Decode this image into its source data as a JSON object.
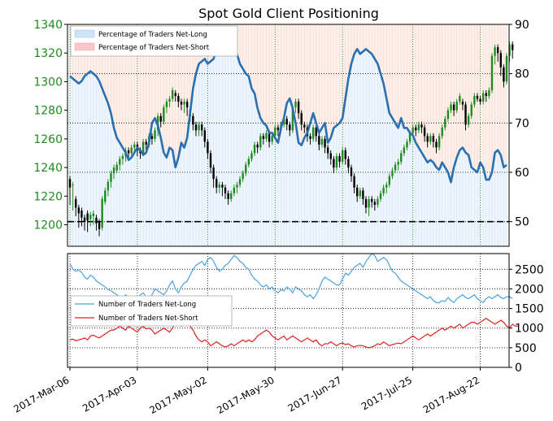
{
  "chart_data": [
    {
      "type": "candlestick+line",
      "title": "Spot Gold Client Positioning",
      "x_ticks": [
        "2017-Mar-06",
        "2017-Apr-03",
        "2017-May-02",
        "2017-May-30",
        "2017-Jun-27",
        "2017-Jul-25",
        "2017-Aug-22"
      ],
      "price_axis": {
        "ticks": [
          1200,
          1220,
          1240,
          1260,
          1280,
          1300,
          1320,
          1340
        ],
        "ylim": [
          1185,
          1340
        ],
        "color": "#1f8a1f"
      },
      "pct_axis": {
        "ticks": [
          50,
          60,
          70,
          80,
          90
        ],
        "ylim": [
          45,
          90
        ]
      },
      "legend": {
        "long_label": "Percentage of Traders Net-Long",
        "short_label": "Percentage of Traders Net-Short",
        "placement": "top-left"
      },
      "pct_net_long": [
        79.5,
        79,
        78.5,
        78,
        78.5,
        79.5,
        80,
        80.5,
        80,
        79.5,
        78.5,
        77,
        75.5,
        74,
        72,
        69,
        67,
        66,
        65,
        64,
        62.5,
        63,
        64,
        65,
        64.5,
        63.5,
        64,
        66,
        70,
        71,
        69.5,
        67,
        64,
        63,
        65,
        64.5,
        61,
        63,
        66,
        65,
        67,
        72,
        77,
        80,
        82,
        82.5,
        83,
        82,
        82.5,
        83,
        85,
        85.5,
        84,
        84,
        85.5,
        86,
        85.5,
        84,
        82,
        81,
        80,
        79.5,
        77,
        76,
        73,
        71,
        70,
        69.5,
        68,
        68,
        67,
        66,
        69,
        71,
        74,
        75,
        73,
        70,
        66,
        65.5,
        67,
        68,
        70,
        72,
        70,
        68,
        69,
        70,
        66,
        67,
        69,
        69.5,
        70,
        71,
        75,
        79,
        82,
        84,
        85,
        84,
        84.5,
        85,
        84.5,
        84,
        83,
        82,
        80,
        78,
        75,
        72,
        71,
        70,
        69,
        71,
        69,
        69,
        68,
        67.5,
        66,
        65,
        64,
        63,
        62,
        62.5,
        62,
        61,
        60.5,
        62,
        61,
        60,
        58,
        61,
        63,
        64.5,
        65,
        64,
        63.5,
        61,
        60.5,
        60,
        62,
        61,
        58.5,
        58.5,
        60,
        64,
        64.5,
        63.5,
        61,
        61.5
      ],
      "ohlc": [
        [
          1232,
          1226,
          1214
        ],
        [
          1228,
          1228,
          1210
        ],
        [
          1218,
          1212,
          1206
        ],
        [
          1212,
          1208,
          1198
        ],
        [
          1210,
          1205,
          1199
        ],
        [
          1205,
          1202,
          1196
        ],
        [
          1208,
          1203,
          1195
        ],
        [
          1204,
          1207,
          1199
        ],
        [
          1206,
          1208,
          1200
        ],
        [
          1205,
          1201,
          1196
        ],
        [
          1202,
          1197,
          1192
        ],
        [
          1198,
          1218,
          1196
        ],
        [
          1216,
          1224,
          1214
        ],
        [
          1224,
          1230,
          1220
        ],
        [
          1230,
          1236,
          1226
        ],
        [
          1236,
          1240,
          1232
        ],
        [
          1238,
          1242,
          1236
        ],
        [
          1242,
          1246,
          1238
        ],
        [
          1246,
          1248,
          1242
        ],
        [
          1248,
          1252,
          1244
        ],
        [
          1252,
          1250,
          1246
        ],
        [
          1250,
          1254,
          1248
        ],
        [
          1254,
          1256,
          1250
        ],
        [
          1256,
          1252,
          1248
        ],
        [
          1252,
          1250,
          1246
        ],
        [
          1250,
          1258,
          1248
        ],
        [
          1258,
          1256,
          1252
        ],
        [
          1256,
          1262,
          1254
        ],
        [
          1262,
          1260,
          1256
        ],
        [
          1260,
          1266,
          1258
        ],
        [
          1266,
          1276,
          1262
        ],
        [
          1276,
          1272,
          1268
        ],
        [
          1272,
          1282,
          1270
        ],
        [
          1282,
          1286,
          1278
        ],
        [
          1286,
          1288,
          1282
        ],
        [
          1288,
          1294,
          1286
        ],
        [
          1292,
          1290,
          1286
        ],
        [
          1290,
          1286,
          1282
        ],
        [
          1286,
          1284,
          1280
        ],
        [
          1284,
          1286,
          1278
        ],
        [
          1286,
          1282,
          1276
        ],
        [
          1280,
          1276,
          1272
        ],
        [
          1276,
          1270,
          1266
        ],
        [
          1270,
          1266,
          1262
        ],
        [
          1266,
          1270,
          1262
        ],
        [
          1270,
          1266,
          1262
        ],
        [
          1266,
          1258,
          1254
        ],
        [
          1258,
          1250,
          1246
        ],
        [
          1250,
          1240,
          1236
        ],
        [
          1240,
          1232,
          1226
        ],
        [
          1232,
          1226,
          1222
        ],
        [
          1226,
          1228,
          1222
        ],
        [
          1228,
          1226,
          1220
        ],
        [
          1226,
          1222,
          1218
        ],
        [
          1222,
          1218,
          1214
        ],
        [
          1218,
          1222,
          1216
        ],
        [
          1222,
          1226,
          1220
        ],
        [
          1226,
          1228,
          1222
        ],
        [
          1228,
          1232,
          1226
        ],
        [
          1232,
          1236,
          1230
        ],
        [
          1236,
          1242,
          1234
        ],
        [
          1242,
          1246,
          1240
        ],
        [
          1246,
          1250,
          1244
        ],
        [
          1250,
          1256,
          1248
        ],
        [
          1256,
          1254,
          1250
        ],
        [
          1254,
          1262,
          1252
        ],
        [
          1262,
          1260,
          1256
        ],
        [
          1260,
          1264,
          1258
        ],
        [
          1264,
          1258,
          1254
        ],
        [
          1258,
          1262,
          1256
        ],
        [
          1262,
          1268,
          1260
        ],
        [
          1268,
          1266,
          1262
        ],
        [
          1266,
          1270,
          1264
        ],
        [
          1270,
          1274,
          1268
        ],
        [
          1274,
          1270,
          1266
        ],
        [
          1270,
          1266,
          1262
        ],
        [
          1266,
          1282,
          1264
        ],
        [
          1282,
          1286,
          1278
        ],
        [
          1286,
          1278,
          1274
        ],
        [
          1278,
          1270,
          1266
        ],
        [
          1270,
          1268,
          1264
        ],
        [
          1268,
          1262,
          1258
        ],
        [
          1262,
          1260,
          1256
        ],
        [
          1260,
          1268,
          1258
        ],
        [
          1268,
          1262,
          1258
        ],
        [
          1262,
          1256,
          1252
        ],
        [
          1256,
          1260,
          1254
        ],
        [
          1260,
          1254,
          1250
        ],
        [
          1254,
          1250,
          1246
        ],
        [
          1250,
          1246,
          1242
        ],
        [
          1246,
          1240,
          1236
        ],
        [
          1240,
          1248,
          1238
        ],
        [
          1248,
          1244,
          1240
        ],
        [
          1244,
          1252,
          1242
        ],
        [
          1252,
          1246,
          1242
        ],
        [
          1246,
          1240,
          1236
        ],
        [
          1240,
          1234,
          1230
        ],
        [
          1234,
          1226,
          1222
        ],
        [
          1226,
          1220,
          1216
        ],
        [
          1220,
          1224,
          1218
        ],
        [
          1224,
          1218,
          1214
        ],
        [
          1218,
          1212,
          1208
        ],
        [
          1212,
          1218,
          1206
        ],
        [
          1218,
          1216,
          1212
        ],
        [
          1216,
          1214,
          1210
        ],
        [
          1214,
          1218,
          1212
        ],
        [
          1218,
          1222,
          1216
        ],
        [
          1222,
          1226,
          1220
        ],
        [
          1226,
          1228,
          1222
        ],
        [
          1228,
          1234,
          1226
        ],
        [
          1234,
          1238,
          1232
        ],
        [
          1238,
          1242,
          1236
        ],
        [
          1242,
          1244,
          1238
        ],
        [
          1244,
          1250,
          1242
        ],
        [
          1250,
          1254,
          1248
        ],
        [
          1254,
          1258,
          1252
        ],
        [
          1258,
          1264,
          1256
        ],
        [
          1264,
          1268,
          1262
        ],
        [
          1268,
          1266,
          1262
        ],
        [
          1266,
          1270,
          1264
        ],
        [
          1270,
          1268,
          1264
        ],
        [
          1268,
          1262,
          1258
        ],
        [
          1262,
          1258,
          1254
        ],
        [
          1258,
          1262,
          1256
        ],
        [
          1262,
          1258,
          1254
        ],
        [
          1258,
          1254,
          1250
        ],
        [
          1254,
          1262,
          1252
        ],
        [
          1262,
          1268,
          1260
        ],
        [
          1268,
          1274,
          1266
        ],
        [
          1274,
          1280,
          1272
        ],
        [
          1280,
          1284,
          1278
        ],
        [
          1284,
          1280,
          1276
        ],
        [
          1280,
          1286,
          1278
        ],
        [
          1286,
          1290,
          1284
        ],
        [
          1286,
          1284,
          1280
        ],
        [
          1284,
          1270,
          1266
        ],
        [
          1270,
          1276,
          1268
        ],
        [
          1276,
          1284,
          1274
        ],
        [
          1284,
          1290,
          1282
        ],
        [
          1290,
          1288,
          1286
        ],
        [
          1288,
          1286,
          1284
        ],
        [
          1286,
          1292,
          1284
        ],
        [
          1292,
          1290,
          1286
        ],
        [
          1290,
          1294,
          1288
        ],
        [
          1294,
          1318,
          1292
        ],
        [
          1318,
          1324,
          1312
        ],
        [
          1324,
          1320,
          1314
        ],
        [
          1320,
          1310,
          1304
        ],
        [
          1310,
          1300,
          1296
        ],
        [
          1300,
          1318,
          1298
        ],
        [
          1318,
          1326,
          1314
        ],
        [
          1326,
          1322,
          1316
        ]
      ],
      "long_color": "#2a6fb0",
      "up_color": "#1f8a1f",
      "down_color": "#000000"
    },
    {
      "type": "line",
      "y_ticks": [
        0,
        500,
        1000,
        1500,
        2000,
        2500
      ],
      "ylim": [
        0,
        2900
      ],
      "legend": {
        "long_label": "Number of Traders Net-Long",
        "short_label": "Number of Traders Net-Short",
        "placement": "left"
      },
      "series": [
        {
          "name": "Number of Traders Net-Long",
          "color": "#4aa3df",
          "values": [
            2650,
            2500,
            2450,
            2480,
            2420,
            2300,
            2250,
            2350,
            2300,
            2200,
            2150,
            2100,
            2050,
            1980,
            1950,
            1900,
            1850,
            1800,
            1780,
            1850,
            1800,
            1750,
            1820,
            1780,
            1850,
            1900,
            1800,
            1750,
            1850,
            2000,
            1950,
            1900,
            1850,
            1950,
            2100,
            2200,
            2000,
            1900,
            2050,
            2150,
            2200,
            2350,
            2500,
            2600,
            2650,
            2700,
            2600,
            2750,
            2800,
            2700,
            2550,
            2450,
            2500,
            2600,
            2650,
            2750,
            2850,
            2800,
            2700,
            2650,
            2550,
            2500,
            2350,
            2250,
            2200,
            2100,
            2050,
            2100,
            2000,
            2050,
            1950,
            1900,
            1980,
            1950,
            2050,
            2000,
            1900,
            2050,
            2000,
            1950,
            1850,
            1800,
            1850,
            1750,
            1850,
            2000,
            2200,
            2300,
            2250,
            2200,
            2150,
            2100,
            2100,
            2250,
            2400,
            2350,
            2450,
            2550,
            2600,
            2650,
            2550,
            2700,
            2800,
            2900,
            2850,
            2700,
            2750,
            2800,
            2750,
            2600,
            2450,
            2400,
            2300,
            2200,
            2150,
            2100,
            2050,
            2000,
            1950,
            1900,
            1850,
            1800,
            1750,
            1800,
            1700,
            1650,
            1650,
            1700,
            1680,
            1780,
            1700,
            1650,
            1750,
            1800,
            1850,
            1780,
            1750,
            1800,
            1850,
            1750,
            1700,
            1650,
            1750,
            1800,
            1750,
            1800,
            1850,
            1780,
            1750,
            1800,
            1800,
            1750
          ]
        },
        {
          "name": "Number of Traders Net-Short",
          "color": "#e02020",
          "values": [
            700,
            720,
            680,
            700,
            720,
            750,
            700,
            800,
            820,
            780,
            750,
            800,
            850,
            900,
            950,
            950,
            1000,
            1050,
            1000,
            950,
            1050,
            1000,
            950,
            900,
            1000,
            1050,
            980,
            1000,
            950,
            850,
            900,
            950,
            1000,
            950,
            900,
            1000,
            1150,
            1200,
            1050,
            1150,
            1100,
            1050,
            950,
            800,
            700,
            650,
            700,
            650,
            550,
            600,
            650,
            600,
            550,
            520,
            550,
            600,
            550,
            600,
            650,
            700,
            650,
            700,
            650,
            700,
            800,
            850,
            900,
            950,
            900,
            800,
            750,
            700,
            750,
            800,
            700,
            750,
            800,
            750,
            700,
            650,
            700,
            750,
            700,
            650,
            700,
            600,
            550,
            600,
            600,
            650,
            600,
            550,
            600,
            620,
            580,
            600,
            550,
            520,
            550,
            560,
            550,
            520,
            500,
            520,
            550,
            600,
            580,
            650,
            600,
            550,
            580,
            600,
            620,
            600,
            650,
            700,
            750,
            800,
            750,
            700,
            750,
            800,
            850,
            800,
            850,
            900,
            950,
            1000,
            950,
            1000,
            1050,
            1000,
            1050,
            1100,
            1000,
            1050,
            1100,
            1150,
            1150,
            1100,
            1150,
            1200,
            1250,
            1200,
            1150,
            1100,
            1150,
            1200,
            1150,
            1050,
            1000,
            1100,
            1050,
            1050
          ]
        }
      ]
    }
  ]
}
